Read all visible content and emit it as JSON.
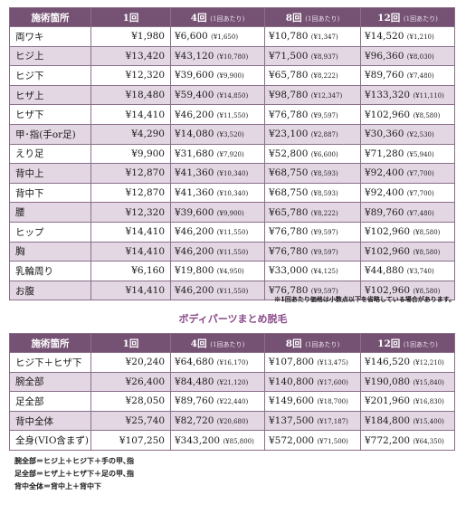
{
  "table1": {
    "headers": [
      "施術箇所",
      "1回",
      "4回",
      "8回",
      "12回"
    ],
    "header_sub": "(1回あたり)",
    "rows": [
      {
        "name": "両ワキ",
        "p1": "¥1,980",
        "p4": "¥6,600",
        "p4s": "(¥1,650)",
        "p8": "¥10,780",
        "p8s": "(¥1,347)",
        "p12": "¥14,520",
        "p12s": "(¥1,210)"
      },
      {
        "name": "ヒジ上",
        "p1": "¥13,420",
        "p4": "¥43,120",
        "p4s": "(¥10,780)",
        "p8": "¥71,500",
        "p8s": "(¥8,937)",
        "p12": "¥96,360",
        "p12s": "(¥8,030)"
      },
      {
        "name": "ヒジ下",
        "p1": "¥12,320",
        "p4": "¥39,600",
        "p4s": "(¥9,900)",
        "p8": "¥65,780",
        "p8s": "(¥8,222)",
        "p12": "¥89,760",
        "p12s": "(¥7,480)"
      },
      {
        "name": "ヒザ上",
        "p1": "¥18,480",
        "p4": "¥59,400",
        "p4s": "(¥14,850)",
        "p8": "¥98,780",
        "p8s": "(¥12,347)",
        "p12": "¥133,320",
        "p12s": "(¥11,110)"
      },
      {
        "name": "ヒザ下",
        "p1": "¥14,410",
        "p4": "¥46,200",
        "p4s": "(¥11,550)",
        "p8": "¥76,780",
        "p8s": "(¥9,597)",
        "p12": "¥102,960",
        "p12s": "(¥8,580)"
      },
      {
        "name": "甲･指(手or足)",
        "p1": "¥4,290",
        "p4": "¥14,080",
        "p4s": "(¥3,520)",
        "p8": "¥23,100",
        "p8s": "(¥2,887)",
        "p12": "¥30,360",
        "p12s": "(¥2,530)"
      },
      {
        "name": "えり足",
        "p1": "¥9,900",
        "p4": "¥31,680",
        "p4s": "(¥7,920)",
        "p8": "¥52,800",
        "p8s": "(¥6,600)",
        "p12": "¥71,280",
        "p12s": "(¥5,940)"
      },
      {
        "name": "背中上",
        "p1": "¥12,870",
        "p4": "¥41,360",
        "p4s": "(¥10,340)",
        "p8": "¥68,750",
        "p8s": "(¥8,593)",
        "p12": "¥92,400",
        "p12s": "(¥7,700)"
      },
      {
        "name": "背中下",
        "p1": "¥12,870",
        "p4": "¥41,360",
        "p4s": "(¥10,340)",
        "p8": "¥68,750",
        "p8s": "(¥8,593)",
        "p12": "¥92,400",
        "p12s": "(¥7,700)"
      },
      {
        "name": "腰",
        "p1": "¥12,320",
        "p4": "¥39,600",
        "p4s": "(¥9,900)",
        "p8": "¥65,780",
        "p8s": "(¥8,222)",
        "p12": "¥89,760",
        "p12s": "(¥7,480)"
      },
      {
        "name": "ヒップ",
        "p1": "¥14,410",
        "p4": "¥46,200",
        "p4s": "(¥11,550)",
        "p8": "¥76,780",
        "p8s": "(¥9,597)",
        "p12": "¥102,960",
        "p12s": "(¥8,580)"
      },
      {
        "name": "胸",
        "p1": "¥14,410",
        "p4": "¥46,200",
        "p4s": "(¥11,550)",
        "p8": "¥76,780",
        "p8s": "(¥9,597)",
        "p12": "¥102,960",
        "p12s": "(¥8,580)"
      },
      {
        "name": "乳輪周り",
        "p1": "¥6,160",
        "p4": "¥19,800",
        "p4s": "(¥4,950)",
        "p8": "¥33,000",
        "p8s": "(¥4,125)",
        "p12": "¥44,880",
        "p12s": "(¥3,740)"
      },
      {
        "name": "お腹",
        "p1": "¥14,410",
        "p4": "¥46,200",
        "p4s": "(¥11,550)",
        "p8": "¥76,780",
        "p8s": "(¥9,597)",
        "p12": "¥102,960",
        "p12s": "(¥8,580)"
      }
    ],
    "note": "※1回あたり価格は小数点以下を省略している場合があります。"
  },
  "section2_title": "ボディパーツまとめ脱毛",
  "table2": {
    "headers": [
      "施術箇所",
      "1回",
      "4回",
      "8回",
      "12回"
    ],
    "header_sub": "(1回あたり)",
    "rows": [
      {
        "name": "ヒジ下＋ヒザ下",
        "p1": "¥20,240",
        "p4": "¥64,680",
        "p4s": "(¥16,170)",
        "p8": "¥107,800",
        "p8s": "(¥13,475)",
        "p12": "¥146,520",
        "p12s": "(¥12,210)"
      },
      {
        "name": "腕全部",
        "p1": "¥26,400",
        "p4": "¥84,480",
        "p4s": "(¥21,120)",
        "p8": "¥140,800",
        "p8s": "(¥17,600)",
        "p12": "¥190,080",
        "p12s": "(¥15,840)"
      },
      {
        "name": "足全部",
        "p1": "¥28,050",
        "p4": "¥89,760",
        "p4s": "(¥22,440)",
        "p8": "¥149,600",
        "p8s": "(¥18,700)",
        "p12": "¥201,960",
        "p12s": "(¥16,830)"
      },
      {
        "name": "背中全体",
        "p1": "¥25,740",
        "p4": "¥82,720",
        "p4s": "(¥20,680)",
        "p8": "¥137,500",
        "p8s": "(¥17,187)",
        "p12": "¥184,800",
        "p12s": "(¥15,400)"
      },
      {
        "name": "全身(VIO含まず)",
        "p1": "¥107,250",
        "p4": "¥343,200",
        "p4s": "(¥85,800)",
        "p8": "¥572,000",
        "p8s": "(¥71,500)",
        "p12": "¥772,200",
        "p12s": "(¥64,350)"
      }
    ]
  },
  "notes": [
    "腕全部＝ヒジ上＋ヒジ下＋手の甲､指",
    "足全部＝ヒザ上＋ヒザ下＋足の甲､指",
    "背中全体＝背中上＋背中下"
  ],
  "colors": {
    "header_bg": "#755174",
    "stripe": "#e4d7e4",
    "accent": "#8a4a8a"
  }
}
